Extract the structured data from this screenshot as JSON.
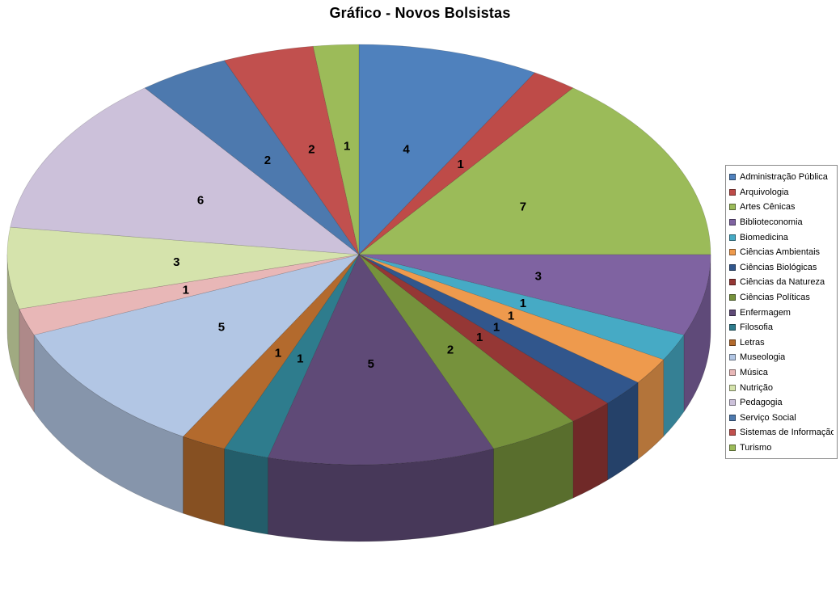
{
  "title": "Gráfico - Novos Bolsistas",
  "chart_data": {
    "type": "pie",
    "style": "3d-pie",
    "title": "Gráfico - Novos Bolsistas",
    "legend_position": "right",
    "data_labels": "values",
    "direction": "clockwise",
    "start_angle_deg": 0,
    "total": 48,
    "categories": [
      "Administração Pública",
      "Arquivologia",
      "Artes Cênicas",
      "Biblioteconomia",
      "Biomedicina",
      "Ciências Ambientais",
      "Ciências Biológicas",
      "Ciências da Natureza",
      "Ciências Políticas",
      "Enfermagem",
      "Filosofia",
      "Letras",
      "Museologia",
      "Música",
      "Nutrição",
      "Pedagogia",
      "Serviço Social",
      "Sistemas de Informação",
      "Turismo"
    ],
    "values": [
      4,
      1,
      7,
      3,
      1,
      1,
      1,
      1,
      2,
      5,
      1,
      1,
      5,
      1,
      3,
      6,
      2,
      2,
      1
    ],
    "colors": [
      "#4F81BD",
      "#BE4B48",
      "#9BBB59",
      "#7F63A1",
      "#46AAC5",
      "#EE9A4D",
      "#31568C",
      "#953735",
      "#76923C",
      "#5F4A77",
      "#2E7C8D",
      "#B36A2D",
      "#B2C6E4",
      "#E8B7B7",
      "#D5E3AC",
      "#CCC1DA",
      "#4D79AE",
      "#C1504E",
      "#9CBB59"
    ]
  }
}
